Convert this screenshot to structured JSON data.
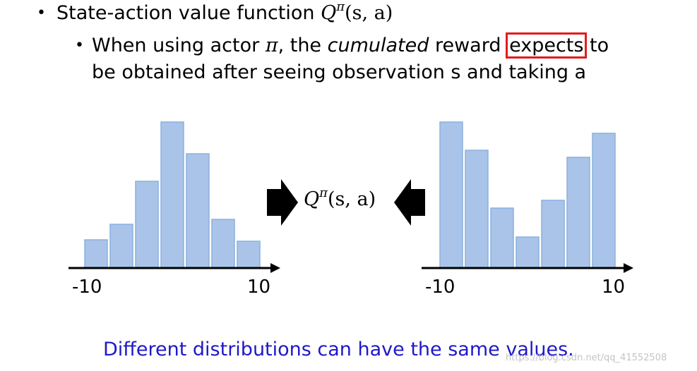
{
  "heading": {
    "text": "State-action value function ",
    "math": "Q",
    "math_sup": "π",
    "math_args": "(s, a)"
  },
  "subpoint": {
    "part1": "When using actor ",
    "pi": "π",
    "part2": ", the ",
    "cumulated": "cumulated",
    "part3": " reward ",
    "highlight": "expects",
    "part4": " to",
    "line2": "be obtained after seeing observation s and taking a"
  },
  "center_label": {
    "math": "Q",
    "math_sup": "π",
    "math_args": "(s, a)"
  },
  "left_hist": {
    "xmin_label": "-10",
    "xmax_label": "10",
    "values": [
      40,
      62,
      123,
      207,
      162,
      69,
      38
    ]
  },
  "right_hist": {
    "xmin_label": "-10",
    "xmax_label": "10",
    "values": [
      207,
      167,
      85,
      44,
      96,
      157,
      191
    ]
  },
  "bottom_note": "Different distributions can have the same values.",
  "watermark": "https://blog.csdn.net/qq_41552508",
  "colors": {
    "bar_fill": "#a9c4e8",
    "highlight_box": "#e41b1b",
    "note_text": "#1f18c9"
  }
}
